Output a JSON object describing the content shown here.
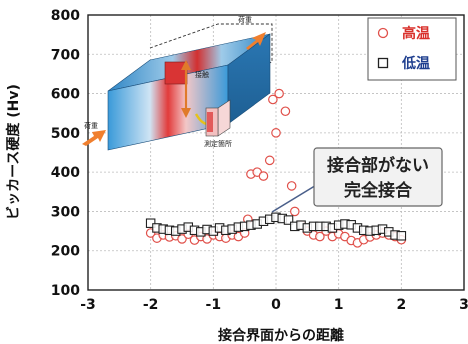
{
  "colors": {
    "high_temp": "#e0504a",
    "low_temp": "#222222",
    "block_hot": "#e23b3b",
    "block_cold": "#3a9ad9",
    "arrow": "#f07f2e",
    "callout_bg": "#f2f2f2",
    "callout_border": "#666666",
    "legend_high_text": "#d9302b",
    "legend_low_text": "#1f3f8f"
  },
  "chart_data": {
    "type": "scatter",
    "xlabel": "接合界面からの距離",
    "ylabel": "ビッカース硬度 (Hv)",
    "xlim": [
      -3,
      3
    ],
    "ylim": [
      100,
      800
    ],
    "xticks": [
      -3,
      -2,
      -1,
      0,
      1,
      2,
      3
    ],
    "yticks": [
      100,
      200,
      300,
      400,
      500,
      600,
      700,
      800
    ],
    "grid": true,
    "legend_position": "top-right",
    "series": [
      {
        "name": "高温",
        "marker": "circle",
        "points": [
          [
            -2.0,
            245
          ],
          [
            -1.9,
            232
          ],
          [
            -1.8,
            240
          ],
          [
            -1.7,
            235
          ],
          [
            -1.6,
            238
          ],
          [
            -1.5,
            230
          ],
          [
            -1.4,
            242
          ],
          [
            -1.3,
            227
          ],
          [
            -1.2,
            236
          ],
          [
            -1.1,
            230
          ],
          [
            -1.0,
            240
          ],
          [
            -0.9,
            236
          ],
          [
            -0.8,
            232
          ],
          [
            -0.7,
            240
          ],
          [
            -0.6,
            236
          ],
          [
            -0.5,
            245
          ],
          [
            -0.45,
            280
          ],
          [
            -0.4,
            395
          ],
          [
            -0.3,
            400
          ],
          [
            -0.2,
            390
          ],
          [
            -0.1,
            430
          ],
          [
            -0.05,
            585
          ],
          [
            0.0,
            500
          ],
          [
            0.05,
            600
          ],
          [
            0.15,
            555
          ],
          [
            0.25,
            365
          ],
          [
            0.3,
            300
          ],
          [
            0.4,
            265
          ],
          [
            0.5,
            250
          ],
          [
            0.6,
            240
          ],
          [
            0.7,
            236
          ],
          [
            0.8,
            250
          ],
          [
            0.9,
            236
          ],
          [
            1.0,
            243
          ],
          [
            1.1,
            236
          ],
          [
            1.2,
            226
          ],
          [
            1.3,
            220
          ],
          [
            1.4,
            228
          ],
          [
            1.5,
            235
          ],
          [
            1.6,
            240
          ],
          [
            1.7,
            245
          ],
          [
            1.8,
            240
          ],
          [
            1.9,
            236
          ],
          [
            2.0,
            228
          ]
        ]
      },
      {
        "name": "低温",
        "marker": "square",
        "points": [
          [
            -2.0,
            270
          ],
          [
            -1.9,
            258
          ],
          [
            -1.8,
            255
          ],
          [
            -1.7,
            252
          ],
          [
            -1.6,
            250
          ],
          [
            -1.5,
            255
          ],
          [
            -1.4,
            260
          ],
          [
            -1.3,
            252
          ],
          [
            -1.2,
            248
          ],
          [
            -1.1,
            254
          ],
          [
            -1.0,
            250
          ],
          [
            -0.9,
            258
          ],
          [
            -0.8,
            252
          ],
          [
            -0.7,
            255
          ],
          [
            -0.6,
            260
          ],
          [
            -0.5,
            262
          ],
          [
            -0.4,
            265
          ],
          [
            -0.3,
            268
          ],
          [
            -0.2,
            275
          ],
          [
            -0.1,
            280
          ],
          [
            0.0,
            285
          ],
          [
            0.1,
            282
          ],
          [
            0.2,
            278
          ],
          [
            0.3,
            262
          ],
          [
            0.4,
            265
          ],
          [
            0.5,
            258
          ],
          [
            0.6,
            262
          ],
          [
            0.7,
            262
          ],
          [
            0.8,
            262
          ],
          [
            0.9,
            258
          ],
          [
            1.0,
            265
          ],
          [
            1.1,
            268
          ],
          [
            1.2,
            266
          ],
          [
            1.3,
            258
          ],
          [
            1.4,
            252
          ],
          [
            1.5,
            250
          ],
          [
            1.6,
            252
          ],
          [
            1.7,
            255
          ],
          [
            1.8,
            248
          ],
          [
            1.9,
            240
          ],
          [
            2.0,
            238
          ]
        ]
      }
    ],
    "annotations": [
      {
        "id": "callout",
        "lines": [
          "接合部がない",
          "完全接合"
        ]
      }
    ]
  },
  "inset": {
    "load_label_top": "荷重",
    "load_label_left": "荷重",
    "joint_label": "接触",
    "measure_label": "測定箇所"
  }
}
